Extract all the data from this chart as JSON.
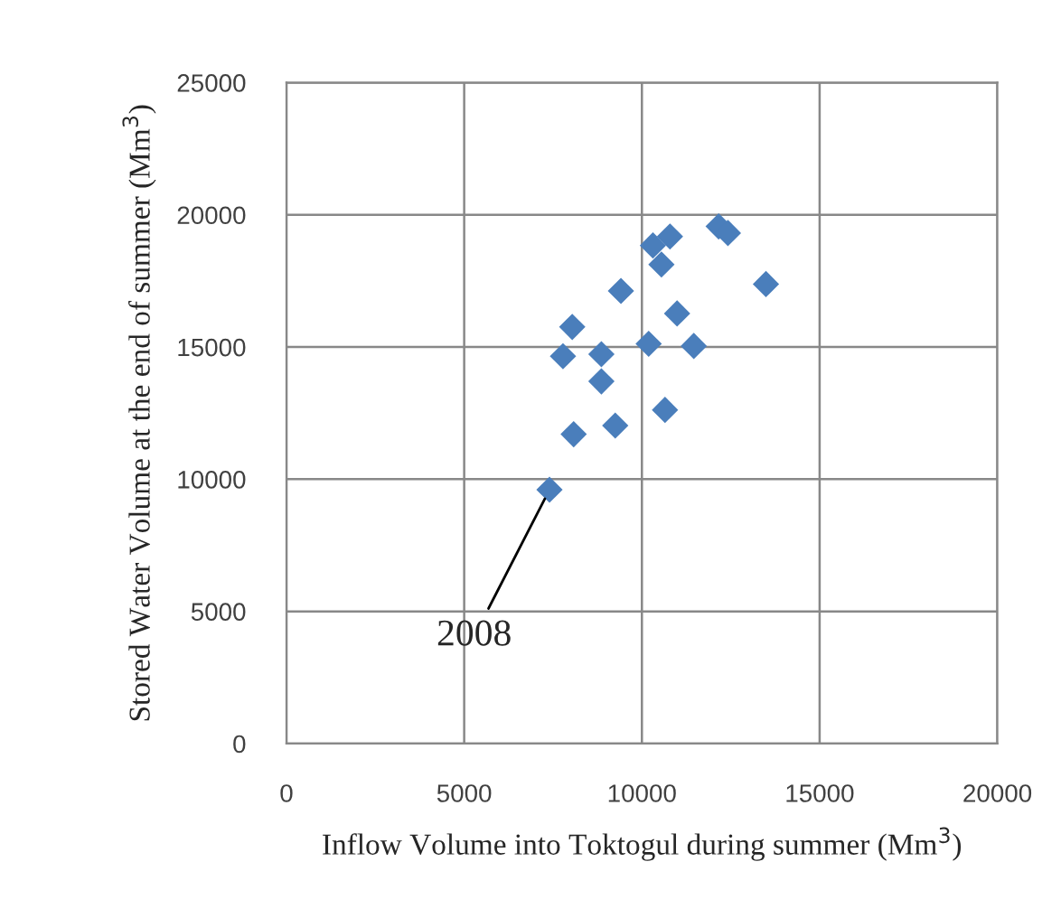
{
  "chart_data": {
    "type": "scatter",
    "xlabel": "Inflow Volume into Toktogul during summer (Mm$^{3}$)",
    "ylabel": "Stored Water Volume at the end of summer (Mm$^{3}$)",
    "x": [
      7400,
      7780,
      8040,
      8080,
      8860,
      8860,
      9250,
      9410,
      10190,
      10310,
      10550,
      10650,
      10790,
      10990,
      11460,
      12160,
      12420,
      13490
    ],
    "series": [
      {
        "color": "#4a7ebb",
        "values": [
          9600,
          14650,
          15760,
          11700,
          14730,
          13700,
          12030,
          17120,
          15120,
          18840,
          18120,
          12620,
          19180,
          16270,
          15040,
          19560,
          19310,
          17380
        ]
      }
    ],
    "xlim": [
      0,
      20000
    ],
    "ylim": [
      0,
      25000
    ],
    "xticks": [
      0,
      5000,
      10000,
      15000,
      20000
    ],
    "yticks": [
      0,
      5000,
      10000,
      15000,
      20000,
      25000
    ],
    "grid": true,
    "marker": "diamond",
    "annotations": [
      {
        "text": "2008",
        "x": 7400,
        "y": 9600
      }
    ]
  }
}
